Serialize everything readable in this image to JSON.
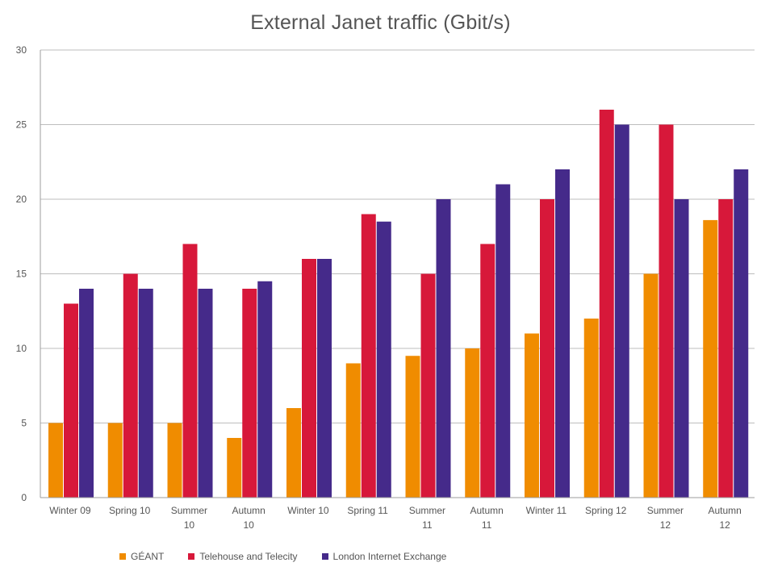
{
  "chart_data": {
    "type": "bar",
    "title": "External Janet traffic (Gbit/s)",
    "xlabel": "",
    "ylabel": "",
    "ylim": [
      0,
      30
    ],
    "yticks": [
      0,
      5,
      10,
      15,
      20,
      25,
      30
    ],
    "grid": true,
    "legend_position": "bottom-left",
    "categories": [
      [
        "Winter 09"
      ],
      [
        "Spring 10"
      ],
      [
        "Summer",
        "10"
      ],
      [
        "Autumn",
        "10"
      ],
      [
        "Winter 10"
      ],
      [
        "Spring 11"
      ],
      [
        "Summer",
        "11"
      ],
      [
        "Autumn",
        "11"
      ],
      [
        "Winter 11"
      ],
      [
        "Spring 12"
      ],
      [
        "Summer",
        "12"
      ],
      [
        "Autumn",
        "12"
      ]
    ],
    "series": [
      {
        "name": "GÉANT",
        "color": "#f08c00",
        "values": [
          5,
          5,
          5,
          4,
          6,
          9,
          9.5,
          10,
          11,
          12,
          15,
          18.6
        ]
      },
      {
        "name": "Telehouse and Telecity",
        "color": "#d7183a",
        "values": [
          13,
          15,
          17,
          14,
          16,
          19,
          15,
          17,
          20,
          26,
          25,
          20
        ]
      },
      {
        "name": "London Internet Exchange",
        "color": "#452a8a",
        "values": [
          14,
          14,
          14,
          14.5,
          16,
          18.5,
          20,
          21,
          22,
          25,
          20,
          22
        ]
      }
    ]
  }
}
